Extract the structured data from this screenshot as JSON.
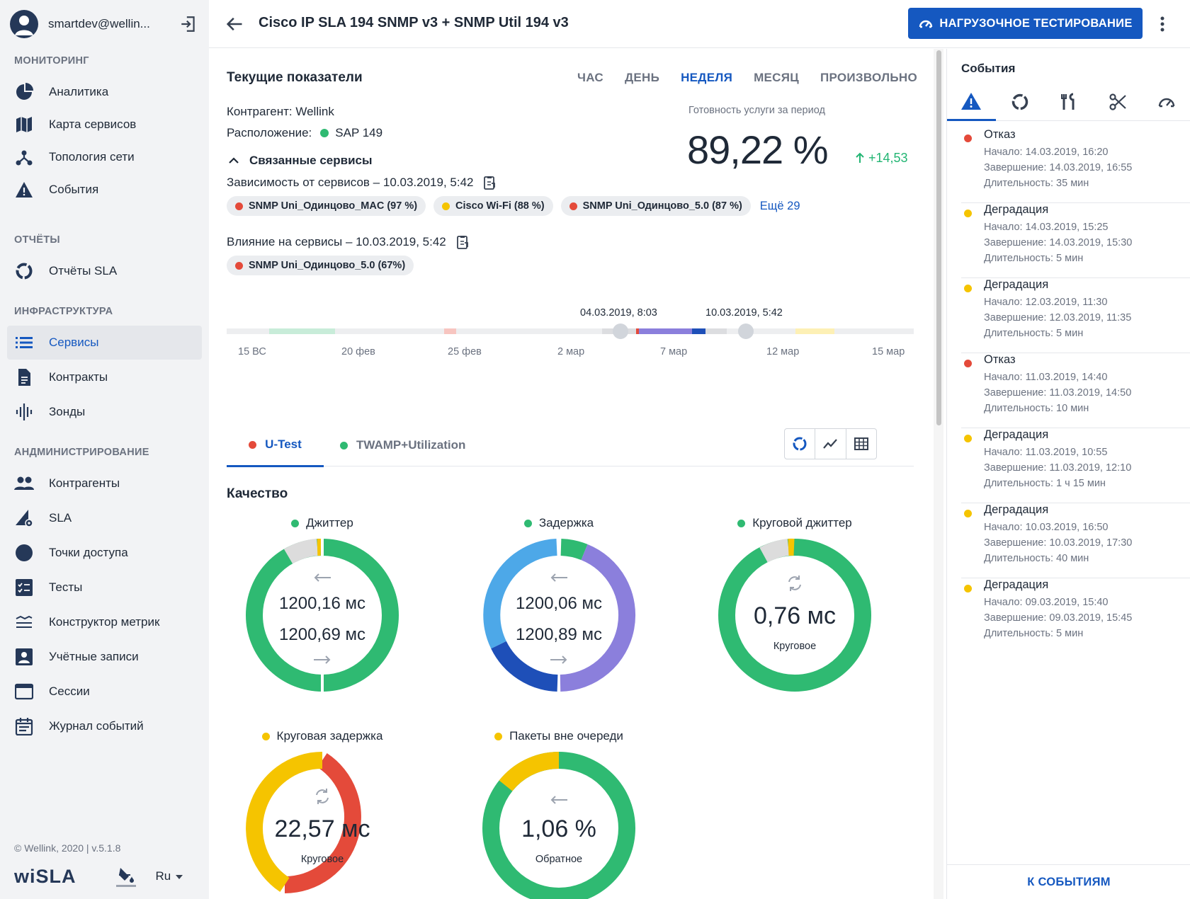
{
  "sidebar": {
    "user_email": "smartdev@wellin...",
    "sections": {
      "monitoring": "МОНИТОРИНГ",
      "reports": "ОТЧЁТЫ",
      "infrastructure": "ИНФРАСТРУКТУРА",
      "administration": "АНДМИНИСТРИРОВАНИЕ"
    },
    "items": {
      "analytics": "Аналитика",
      "service_map": "Карта сервисов",
      "topology": "Топология сети",
      "events": "События",
      "sla_reports": "Отчёты SLA",
      "services": "Сервисы",
      "contracts": "Контракты",
      "probes": "Зонды",
      "counterparties": "Контрагенты",
      "sla": "SLA",
      "access_points": "Точки доступа",
      "tests": "Тесты",
      "metric_builder": "Конструктор метрик",
      "accounts": "Учётные записи",
      "sessions": "Сессии",
      "event_log": "Журнал событий"
    },
    "copyright": "© Wellink, 2020 | v.5.1.8",
    "logo": "wiSLA",
    "language": "Ru"
  },
  "header": {
    "title": "Cisco IP SLA 194 SNMP v3 + SNMP Util 194 v3",
    "load_test_button": "НАГРУЗОЧНОЕ ТЕСТИРОВАНИЕ"
  },
  "main": {
    "current_title": "Текущие показатели",
    "periods": [
      "ЧАС",
      "ДЕНЬ",
      "НЕДЕЛЯ",
      "МЕСЯЦ",
      "ПРОИЗВОЛЬНО"
    ],
    "active_period": "НЕДЕЛЯ",
    "counterparty": "Контрагент: Wellink",
    "location_label": "Расположение:",
    "location_value": "SAP 149",
    "availability_label": "Готовность услуги за период",
    "availability_value": "89,22 %",
    "availability_delta": "+14,53",
    "linked_services": "Связанные сервисы",
    "dependency_title": "Зависимость от сервисов – 10.03.2019, 5:42",
    "dependency_chips": [
      {
        "label": "SNMP Uni_Одинцово_MAC (97 %)",
        "color": "#e44a3a"
      },
      {
        "label": "Cisco Wi-Fi (88 %)",
        "color": "#f5c400"
      },
      {
        "label": "SNMP Uni_Одинцово_5.0 (87 %)",
        "color": "#e44a3a"
      }
    ],
    "more_link": "Ещё 29",
    "impact_title": "Влияние на сервисы – 10.03.2019, 5:42",
    "impact_chips": [
      {
        "label": "SNMP Uni_Одинцово_5.0 (67%)",
        "color": "#e44a3a"
      }
    ],
    "timeline": {
      "start_date": "04.03.2019, 8:03",
      "end_date": "10.03.2019, 5:42",
      "ticks": [
        "15 ВС",
        "20 фев",
        "25 фев",
        "2 мар",
        "7 мар",
        "12 мар",
        "15 мар"
      ]
    },
    "tabs": [
      {
        "label": "U-Test",
        "color": "#e44a3a"
      },
      {
        "label": "TWAMP+Utilization",
        "color": "#2fba72"
      }
    ],
    "quality_title": "Качество",
    "donuts": [
      {
        "label": "Джиттер",
        "dot": "#2fba72",
        "top_value": "1200,16 мс",
        "bottom_value": "1200,69 мс"
      },
      {
        "label": "Задержка",
        "dot": "#2fba72",
        "top_value": "1200,06 мс",
        "bottom_value": "1200,89 мс"
      },
      {
        "label": "Круговой джиттер",
        "dot": "#2fba72",
        "value": "0,76 мс",
        "sub": "Круговое"
      },
      {
        "label": "Круговая задержка",
        "dot": "#f5c400",
        "value": "22,57 мс",
        "sub": "Круговое"
      },
      {
        "label": "Пакеты вне очереди",
        "dot": "#f5c400",
        "value": "1,06 %",
        "sub": "Обратное"
      }
    ]
  },
  "events": {
    "title": "События",
    "footer_link": "К СОБЫТИЯМ",
    "items": [
      {
        "type": "Отказ",
        "color": "#e44a3a",
        "start": "Начало: 14.03.2019, 16:20",
        "end": "Завершение: 14.03.2019, 16:55",
        "duration": "Длительность: 35 мин"
      },
      {
        "type": "Деградация",
        "color": "#f5c400",
        "start": "Начало: 14.03.2019, 15:25",
        "end": "Завершение: 14.03.2019, 15:30",
        "duration": "Длительность: 5 мин"
      },
      {
        "type": "Деградация",
        "color": "#f5c400",
        "start": "Начало: 12.03.2019, 11:30",
        "end": "Завершение: 12.03.2019, 11:35",
        "duration": "Длительность: 5 мин"
      },
      {
        "type": "Отказ",
        "color": "#e44a3a",
        "start": "Начало: 11.03.2019, 14:40",
        "end": "Завершение: 11.03.2019, 14:50",
        "duration": "Длительность: 10 мин"
      },
      {
        "type": "Деградация",
        "color": "#f5c400",
        "start": "Начало: 11.03.2019, 10:55",
        "end": "Завершение: 11.03.2019, 12:10",
        "duration": "Длительность: 1 ч 15 мин"
      },
      {
        "type": "Деградация",
        "color": "#f5c400",
        "start": "Начало: 10.03.2019, 16:50",
        "end": "Завершение: 10.03.2019, 17:30",
        "duration": "Длительность: 40 мин"
      },
      {
        "type": "Деградация",
        "color": "#f5c400",
        "start": "Начало: 09.03.2019, 15:40",
        "end": "Завершение: 09.03.2019, 15:45",
        "duration": "Длительность: 5 мин"
      }
    ]
  },
  "colors": {
    "accent": "#1558c0",
    "ok": "#2fba72",
    "warn": "#f5c400",
    "fail": "#e44a3a"
  }
}
